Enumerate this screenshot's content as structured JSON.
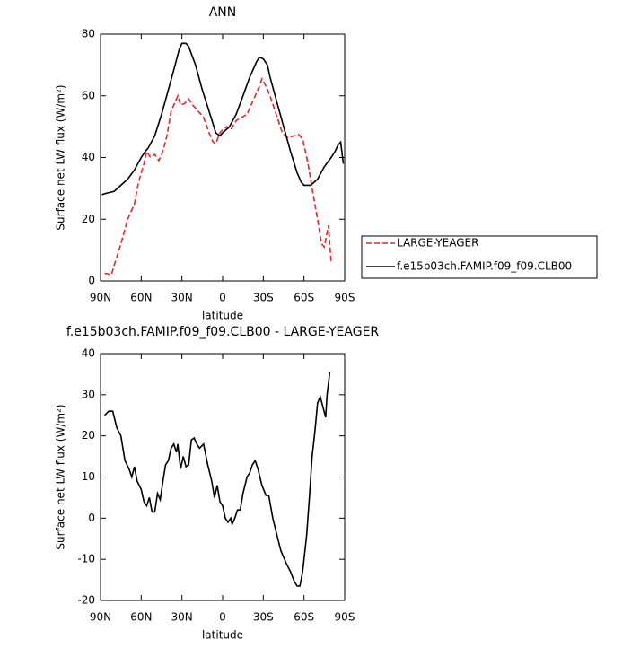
{
  "chart_data": [
    {
      "type": "line",
      "title": "ANN",
      "xlabel": "latitude",
      "ylabel": "Surface net LW flux (W/m²)",
      "xlim": [
        90,
        -90
      ],
      "xticks": [
        {
          "value": 90,
          "label": "90N"
        },
        {
          "value": 60,
          "label": "60N"
        },
        {
          "value": 30,
          "label": "30N"
        },
        0,
        {
          "value": -30,
          "label": "30S"
        },
        {
          "value": -60,
          "label": "60S"
        },
        {
          "value": -90,
          "label": "90S"
        }
      ],
      "ylim": [
        0,
        80
      ],
      "yticks": [
        0,
        20,
        40,
        60,
        80
      ],
      "legend": "right",
      "series": [
        {
          "name": "LARGE-YEAGER",
          "color": "#e8252a",
          "line_style": "dashed",
          "x": [
            87,
            82,
            80,
            75,
            70,
            65,
            62,
            58,
            56,
            53,
            50,
            47,
            44,
            41,
            38,
            35,
            33,
            31,
            28,
            25,
            22,
            18,
            14,
            10,
            7,
            5,
            2,
            0,
            -3,
            -6,
            -10,
            -14,
            -18,
            -21,
            -24,
            -27,
            -29,
            -32,
            -35,
            -38,
            -41,
            -44,
            -48,
            -53,
            -56,
            -59,
            -63,
            -66,
            -70,
            -73,
            -75,
            -78,
            -79,
            -80
          ],
          "values": [
            2.5,
            2,
            5,
            12,
            20,
            25,
            32,
            38,
            42,
            40,
            41,
            39,
            42,
            47,
            55,
            58,
            60,
            57,
            57.5,
            59,
            57,
            55,
            53,
            48,
            45,
            44.5,
            48,
            49,
            50,
            49,
            52,
            53,
            54,
            57,
            60,
            63,
            65.5,
            63,
            60,
            56,
            52,
            48,
            46.5,
            47,
            47.5,
            46,
            38,
            30,
            20,
            12,
            11,
            18,
            12,
            6
          ]
        },
        {
          "name": "f.e15b03ch.FAMIP.f09_f09.CLB00",
          "color": "#000000",
          "line_style": "solid",
          "x": [
            89,
            85,
            80,
            75,
            70,
            65,
            60,
            57,
            55,
            50,
            45,
            40,
            35,
            32,
            30,
            27,
            25,
            20,
            15,
            10,
            5,
            2,
            0,
            -5,
            -10,
            -15,
            -20,
            -25,
            -27,
            -30,
            -33,
            -35,
            -40,
            -45,
            -50,
            -55,
            -58,
            -60,
            -65,
            -70,
            -75,
            -80,
            -83,
            -85,
            -87,
            -89
          ],
          "values": [
            28,
            28.5,
            29,
            31,
            33,
            36,
            40,
            42,
            43,
            47,
            54,
            62,
            70,
            75,
            77,
            77,
            76,
            70,
            62,
            55,
            48,
            47,
            48,
            50,
            54,
            60,
            66,
            71,
            72.5,
            72,
            70,
            66,
            58,
            50,
            42,
            35,
            32,
            31,
            31,
            33,
            37,
            40,
            42,
            44,
            45,
            38
          ]
        }
      ]
    },
    {
      "type": "line",
      "title": "f.e15b03ch.FAMIP.f09_f09.CLB00 - LARGE-YEAGER",
      "xlabel": "latitude",
      "ylabel": "Surface net LW flux (W/m²)",
      "xlim": [
        90,
        -90
      ],
      "xticks": [
        {
          "value": 90,
          "label": "90N"
        },
        {
          "value": 60,
          "label": "60N"
        },
        {
          "value": 30,
          "label": "30N"
        },
        0,
        {
          "value": -30,
          "label": "30S"
        },
        {
          "value": -60,
          "label": "60S"
        },
        {
          "value": -90,
          "label": "90S"
        }
      ],
      "ylim": [
        -20,
        40
      ],
      "yticks": [
        -20,
        -10,
        0,
        10,
        20,
        30,
        40
      ],
      "color": "#000000",
      "x": [
        87,
        84,
        81,
        78,
        75,
        72,
        69,
        67,
        65,
        63,
        60,
        58,
        56,
        54,
        52,
        50,
        48,
        46,
        44,
        42,
        40,
        38,
        36,
        34,
        33,
        31,
        29,
        27,
        25,
        23,
        21,
        19,
        17,
        14,
        11,
        8,
        6,
        4,
        2,
        0,
        -2,
        -4,
        -6,
        -7,
        -9,
        -11,
        -13,
        -15,
        -18,
        -20,
        -22,
        -24,
        -26,
        -29,
        -32,
        -34,
        -37,
        -40,
        -43,
        -47,
        -50,
        -53,
        -55,
        -57,
        -59,
        -62,
        -64,
        -66,
        -68,
        -70,
        -72,
        -74,
        -76,
        -77,
        -79
      ],
      "values": [
        25,
        26,
        26,
        22,
        20,
        14,
        12,
        10,
        12.5,
        9,
        7,
        4,
        3,
        5,
        1.5,
        1.5,
        6,
        4.5,
        9,
        13,
        14,
        17,
        18,
        16,
        18,
        12,
        15,
        12.5,
        13,
        19,
        19.5,
        18,
        17,
        18,
        13,
        9,
        5,
        8,
        4,
        3,
        0,
        -1,
        0,
        -1.5,
        0,
        2,
        2,
        6,
        10,
        11,
        13,
        14,
        12,
        8,
        5.5,
        5.5,
        0,
        -4,
        -8,
        -11,
        -13,
        -15.5,
        -16.5,
        -16.5,
        -13,
        -4,
        5,
        15,
        21,
        28,
        29.5,
        27,
        24.5,
        30,
        35.5
      ]
    }
  ]
}
